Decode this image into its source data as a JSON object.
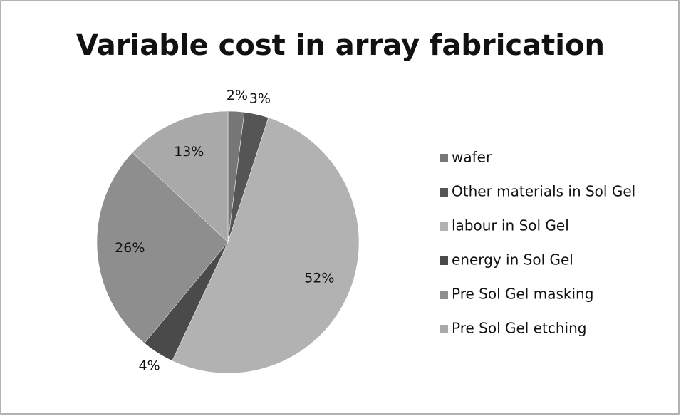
{
  "chart_data": {
    "type": "pie",
    "title": "Variable cost in array fabrication",
    "categories": [
      "wafer",
      "Other materials in Sol Gel",
      "labour in Sol Gel",
      "energy in Sol Gel",
      "Pre Sol Gel masking",
      "Pre Sol Gel etching"
    ],
    "values": [
      2,
      3,
      52,
      4,
      26,
      13
    ],
    "value_labels": [
      "2%",
      "3%",
      "52%",
      "4%",
      "26%",
      "13%"
    ],
    "colors": [
      "#777777",
      "#555555",
      "#b2b2b2",
      "#4a4a4a",
      "#8e8e8e",
      "#a9a9a9"
    ]
  }
}
